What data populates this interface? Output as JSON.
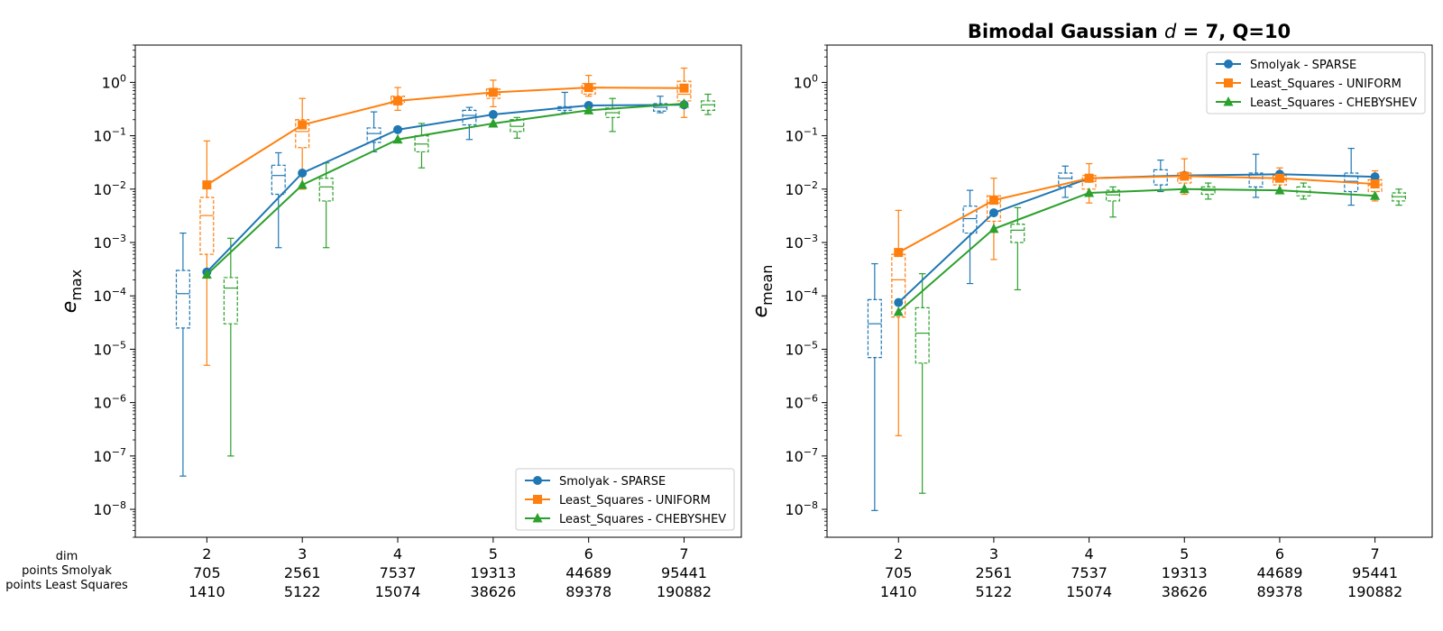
{
  "figure": {
    "title_main": "Bimodal Gaussian ",
    "title_var": "d",
    "title_rest": " = 7, Q=10",
    "row_labels": [
      "dim",
      "points Smolyak",
      "points Least Squares"
    ]
  },
  "colors": {
    "smolyak": "#1f77b4",
    "uniform": "#ff7f0e",
    "chebyshev": "#2ca02c"
  },
  "chart_data": [
    {
      "type": "line",
      "id": "emax",
      "ylabel_base": "e",
      "ylabel_sub": "max",
      "yscale": "log",
      "ylim": [
        3e-09,
        5
      ],
      "xlim": [
        1.25,
        7.6
      ],
      "x": [
        2,
        3,
        4,
        5,
        6,
        7
      ],
      "x_tick_rows": [
        [
          "2",
          "3",
          "4",
          "5",
          "6",
          "7"
        ],
        [
          "705",
          "2561",
          "7537",
          "19313",
          "44689",
          "95441"
        ],
        [
          "1410",
          "5122",
          "15074",
          "38626",
          "89378",
          "190882"
        ]
      ],
      "y_ticks": [
        {
          "value": 1,
          "exp": "0"
        },
        {
          "value": 0.1,
          "exp": "−1"
        },
        {
          "value": 0.01,
          "exp": "−2"
        },
        {
          "value": 0.001,
          "exp": "−3"
        },
        {
          "value": 0.0001,
          "exp": "−4"
        },
        {
          "value": 1e-05,
          "exp": "−5"
        },
        {
          "value": 1e-06,
          "exp": "−6"
        },
        {
          "value": 1e-07,
          "exp": "−7"
        },
        {
          "value": 1e-08,
          "exp": "−8"
        }
      ],
      "legend_position": "lower-right",
      "series": [
        {
          "name": "Smolyak - SPARSE",
          "color_key": "smolyak",
          "marker": "circle",
          "values": [
            0.00028,
            0.02,
            0.13,
            0.25,
            0.37,
            0.38
          ],
          "boxes": [
            {
              "whislo": 4.2e-08,
              "q1": 2.5e-05,
              "med": 0.00011,
              "q3": 0.0003,
              "whishi": 0.0015
            },
            {
              "whislo": 0.0008,
              "q1": 0.008,
              "med": 0.018,
              "q3": 0.028,
              "whishi": 0.048
            },
            {
              "whislo": 0.05,
              "q1": 0.075,
              "med": 0.11,
              "q3": 0.14,
              "whishi": 0.28
            },
            {
              "whislo": 0.085,
              "q1": 0.16,
              "med": 0.24,
              "q3": 0.3,
              "whishi": 0.34
            },
            {
              "whislo": 0.27,
              "q1": 0.3,
              "med": 0.33,
              "q3": 0.35,
              "whishi": 0.65
            },
            {
              "whislo": 0.27,
              "q1": 0.29,
              "med": 0.34,
              "q3": 0.4,
              "whishi": 0.55
            }
          ]
        },
        {
          "name": "Least_Squares - UNIFORM",
          "color_key": "uniform",
          "marker": "square",
          "values": [
            0.012,
            0.16,
            0.45,
            0.65,
            0.8,
            0.78
          ],
          "boxes": [
            {
              "whislo": 5e-06,
              "q1": 0.0006,
              "med": 0.0032,
              "q3": 0.007,
              "whishi": 0.08
            },
            {
              "whislo": 0.01,
              "q1": 0.06,
              "med": 0.12,
              "q3": 0.2,
              "whishi": 0.5
            },
            {
              "whislo": 0.3,
              "q1": 0.4,
              "med": 0.45,
              "q3": 0.55,
              "whishi": 0.8
            },
            {
              "whislo": 0.35,
              "q1": 0.5,
              "med": 0.6,
              "q3": 0.75,
              "whishi": 1.1
            },
            {
              "whislo": 0.55,
              "q1": 0.6,
              "med": 0.75,
              "q3": 0.95,
              "whishi": 1.35
            },
            {
              "whislo": 0.22,
              "q1": 0.45,
              "med": 0.6,
              "q3": 1.05,
              "whishi": 1.85
            }
          ]
        },
        {
          "name": "Least_Squares - CHEBYSHEV",
          "color_key": "chebyshev",
          "marker": "triangle",
          "values": [
            0.00025,
            0.012,
            0.085,
            0.17,
            0.3,
            0.4
          ],
          "boxes": [
            {
              "whislo": 1e-07,
              "q1": 3e-05,
              "med": 0.00014,
              "q3": 0.00022,
              "whishi": 0.0012
            },
            {
              "whislo": 0.0008,
              "q1": 0.006,
              "med": 0.011,
              "q3": 0.016,
              "whishi": 0.031
            },
            {
              "whislo": 0.025,
              "q1": 0.05,
              "med": 0.07,
              "q3": 0.1,
              "whishi": 0.17
            },
            {
              "whislo": 0.09,
              "q1": 0.12,
              "med": 0.15,
              "q3": 0.2,
              "whishi": 0.22
            },
            {
              "whislo": 0.12,
              "q1": 0.22,
              "med": 0.27,
              "q3": 0.33,
              "whishi": 0.5
            },
            {
              "whislo": 0.25,
              "q1": 0.3,
              "med": 0.38,
              "q3": 0.45,
              "whishi": 0.6
            }
          ]
        }
      ]
    },
    {
      "type": "line",
      "id": "emean",
      "title": "Bimodal Gaussian d = 7, Q=10",
      "ylabel_base": "e",
      "ylabel_sub": "mean",
      "yscale": "log",
      "ylim": [
        3e-09,
        5
      ],
      "xlim": [
        1.25,
        7.6
      ],
      "x": [
        2,
        3,
        4,
        5,
        6,
        7
      ],
      "x_tick_rows": [
        [
          "2",
          "3",
          "4",
          "5",
          "6",
          "7"
        ],
        [
          "705",
          "2561",
          "7537",
          "19313",
          "44689",
          "95441"
        ],
        [
          "1410",
          "5122",
          "15074",
          "38626",
          "89378",
          "190882"
        ]
      ],
      "y_ticks": [
        {
          "value": 1,
          "exp": "0"
        },
        {
          "value": 0.1,
          "exp": "−1"
        },
        {
          "value": 0.01,
          "exp": "−2"
        },
        {
          "value": 0.001,
          "exp": "−3"
        },
        {
          "value": 0.0001,
          "exp": "−4"
        },
        {
          "value": 1e-05,
          "exp": "−5"
        },
        {
          "value": 1e-06,
          "exp": "−6"
        },
        {
          "value": 1e-07,
          "exp": "−7"
        },
        {
          "value": 1e-08,
          "exp": "−8"
        }
      ],
      "legend_position": "upper-right",
      "series": [
        {
          "name": "Smolyak - SPARSE",
          "color_key": "smolyak",
          "marker": "circle",
          "values": [
            7.5e-05,
            0.0036,
            0.016,
            0.018,
            0.019,
            0.017
          ],
          "boxes": [
            {
              "whislo": 9.5e-09,
              "q1": 7e-06,
              "med": 3e-05,
              "q3": 8.5e-05,
              "whishi": 0.0004
            },
            {
              "whislo": 0.00017,
              "q1": 0.0015,
              "med": 0.0028,
              "q3": 0.0048,
              "whishi": 0.0095
            },
            {
              "whislo": 0.007,
              "q1": 0.011,
              "med": 0.016,
              "q3": 0.02,
              "whishi": 0.027
            },
            {
              "whislo": 0.009,
              "q1": 0.012,
              "med": 0.017,
              "q3": 0.023,
              "whishi": 0.035
            },
            {
              "whislo": 0.007,
              "q1": 0.011,
              "med": 0.016,
              "q3": 0.02,
              "whishi": 0.045
            },
            {
              "whislo": 0.005,
              "q1": 0.009,
              "med": 0.014,
              "q3": 0.02,
              "whishi": 0.058
            }
          ]
        },
        {
          "name": "Least_Squares - UNIFORM",
          "color_key": "uniform",
          "marker": "square",
          "values": [
            0.00065,
            0.0062,
            0.016,
            0.0175,
            0.016,
            0.0125
          ],
          "boxes": [
            {
              "whislo": 2.4e-07,
              "q1": 4e-05,
              "med": 0.0002,
              "q3": 0.0006,
              "whishi": 0.004
            },
            {
              "whislo": 0.00048,
              "q1": 0.0025,
              "med": 0.0055,
              "q3": 0.0075,
              "whishi": 0.016
            },
            {
              "whislo": 0.0055,
              "q1": 0.01,
              "med": 0.014,
              "q3": 0.018,
              "whishi": 0.03
            },
            {
              "whislo": 0.008,
              "q1": 0.013,
              "med": 0.016,
              "q3": 0.02,
              "whishi": 0.037
            },
            {
              "whislo": 0.0085,
              "q1": 0.012,
              "med": 0.015,
              "q3": 0.018,
              "whishi": 0.025
            },
            {
              "whislo": 0.006,
              "q1": 0.009,
              "med": 0.012,
              "q3": 0.015,
              "whishi": 0.022
            }
          ]
        },
        {
          "name": "Least_Squares - CHEBYSHEV",
          "color_key": "chebyshev",
          "marker": "triangle",
          "values": [
            5e-05,
            0.0018,
            0.0085,
            0.01,
            0.0095,
            0.0075
          ],
          "boxes": [
            {
              "whislo": 2e-08,
              "q1": 5.5e-06,
              "med": 2e-05,
              "q3": 6e-05,
              "whishi": 0.00026
            },
            {
              "whislo": 0.00013,
              "q1": 0.001,
              "med": 0.0017,
              "q3": 0.0022,
              "whishi": 0.0045
            },
            {
              "whislo": 0.003,
              "q1": 0.006,
              "med": 0.0078,
              "q3": 0.0095,
              "whishi": 0.011
            },
            {
              "whislo": 0.0065,
              "q1": 0.008,
              "med": 0.0095,
              "q3": 0.011,
              "whishi": 0.013
            },
            {
              "whislo": 0.0065,
              "q1": 0.0075,
              "med": 0.009,
              "q3": 0.011,
              "whishi": 0.013
            },
            {
              "whislo": 0.005,
              "q1": 0.006,
              "med": 0.0072,
              "q3": 0.0085,
              "whishi": 0.01
            }
          ]
        }
      ]
    }
  ]
}
